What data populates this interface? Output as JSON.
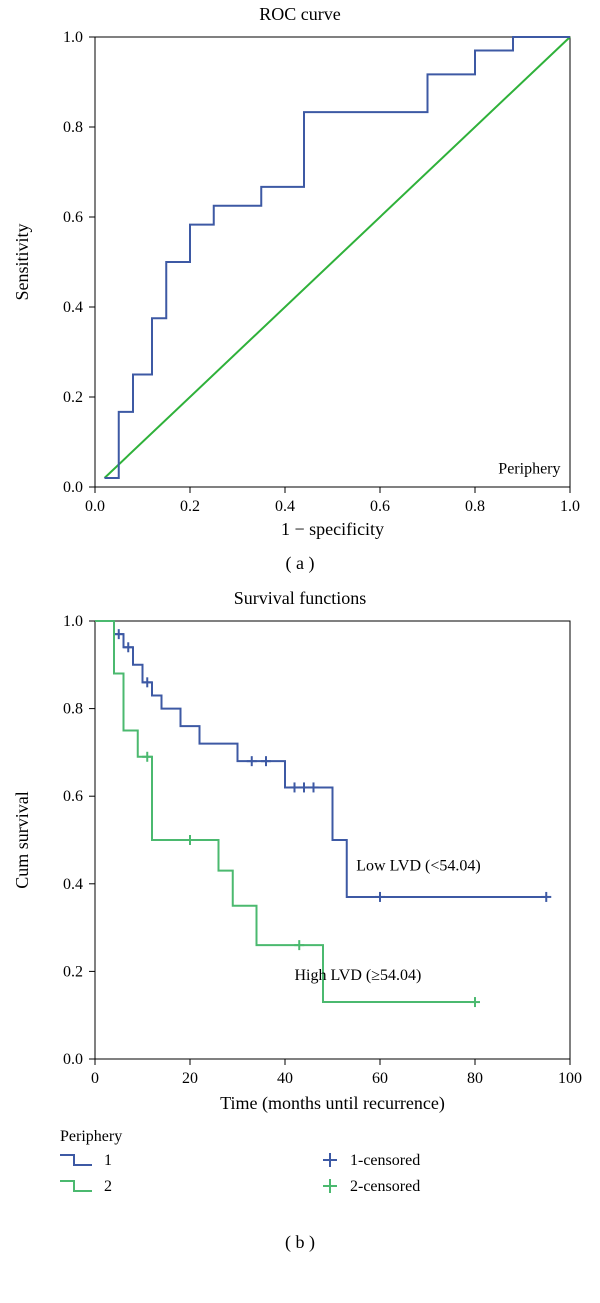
{
  "panelA": {
    "type": "roc",
    "title": "ROC curve",
    "xlabel": "1 − specificity",
    "ylabel": "Sensitivity",
    "xlim": [
      0,
      1
    ],
    "ylim": [
      0,
      1
    ],
    "xticks": [
      0.0,
      0.2,
      0.4,
      0.6,
      0.8,
      1.0
    ],
    "yticks": [
      0.0,
      0.2,
      0.4,
      0.6,
      0.8,
      1.0
    ],
    "corner_label": "Periphery",
    "diagonal": {
      "color": "#2fb13a",
      "points": [
        [
          0.02,
          0.02
        ],
        [
          1.0,
          1.0
        ]
      ]
    },
    "roc": {
      "color": "#3d59a4",
      "points": [
        [
          0.02,
          0.02
        ],
        [
          0.05,
          0.02
        ],
        [
          0.05,
          0.167
        ],
        [
          0.08,
          0.167
        ],
        [
          0.08,
          0.25
        ],
        [
          0.12,
          0.25
        ],
        [
          0.12,
          0.375
        ],
        [
          0.15,
          0.375
        ],
        [
          0.15,
          0.5
        ],
        [
          0.2,
          0.5
        ],
        [
          0.2,
          0.583
        ],
        [
          0.25,
          0.583
        ],
        [
          0.25,
          0.625
        ],
        [
          0.3,
          0.625
        ],
        [
          0.35,
          0.625
        ],
        [
          0.35,
          0.667
        ],
        [
          0.44,
          0.667
        ],
        [
          0.44,
          0.833
        ],
        [
          0.5,
          0.833
        ],
        [
          0.7,
          0.833
        ],
        [
          0.7,
          0.917
        ],
        [
          0.8,
          0.917
        ],
        [
          0.8,
          0.97
        ],
        [
          0.88,
          0.97
        ],
        [
          0.88,
          1.0
        ],
        [
          1.0,
          1.0
        ]
      ]
    },
    "background_color": "#ffffff",
    "axis_color": "#000000",
    "label_fontsize": 18,
    "tick_fontsize": 16
  },
  "panelB": {
    "type": "kaplan-meier",
    "title": "Survival functions",
    "xlabel": "Time (months until recurrence)",
    "ylabel": "Cum survival",
    "xlim": [
      0,
      100
    ],
    "ylim": [
      0,
      1
    ],
    "xticks": [
      0,
      20,
      40,
      60,
      80,
      100
    ],
    "yticks": [
      0.0,
      0.2,
      0.4,
      0.6,
      0.8,
      1.0
    ],
    "series": [
      {
        "id": "1",
        "label": "1",
        "censored_label": "1-censored",
        "color": "#3d59a4",
        "annotation": "Low LVD (<54.04)",
        "annotation_xy": [
          55,
          0.43
        ],
        "points": [
          [
            0,
            1.0
          ],
          [
            4,
            1.0
          ],
          [
            4,
            0.97
          ],
          [
            6,
            0.97
          ],
          [
            6,
            0.94
          ],
          [
            8,
            0.94
          ],
          [
            8,
            0.9
          ],
          [
            10,
            0.9
          ],
          [
            10,
            0.86
          ],
          [
            12,
            0.86
          ],
          [
            12,
            0.83
          ],
          [
            14,
            0.83
          ],
          [
            14,
            0.8
          ],
          [
            18,
            0.8
          ],
          [
            18,
            0.76
          ],
          [
            22,
            0.76
          ],
          [
            22,
            0.72
          ],
          [
            26,
            0.72
          ],
          [
            30,
            0.72
          ],
          [
            30,
            0.68
          ],
          [
            36,
            0.68
          ],
          [
            40,
            0.68
          ],
          [
            40,
            0.62
          ],
          [
            48,
            0.62
          ],
          [
            50,
            0.62
          ],
          [
            50,
            0.5
          ],
          [
            53,
            0.5
          ],
          [
            53,
            0.37
          ],
          [
            60,
            0.37
          ],
          [
            95,
            0.37
          ]
        ],
        "censored": [
          [
            5,
            0.97
          ],
          [
            7,
            0.94
          ],
          [
            11,
            0.86
          ],
          [
            33,
            0.68
          ],
          [
            36,
            0.68
          ],
          [
            42,
            0.62
          ],
          [
            44,
            0.62
          ],
          [
            46,
            0.62
          ],
          [
            60,
            0.37
          ],
          [
            95,
            0.37
          ]
        ]
      },
      {
        "id": "2",
        "label": "2",
        "censored_label": "2-censored",
        "color": "#4bb96f",
        "annotation": "High LVD (≥54.04)",
        "annotation_xy": [
          42,
          0.18
        ],
        "points": [
          [
            0,
            1.0
          ],
          [
            4,
            1.0
          ],
          [
            4,
            0.88
          ],
          [
            6,
            0.88
          ],
          [
            6,
            0.75
          ],
          [
            9,
            0.75
          ],
          [
            9,
            0.69
          ],
          [
            12,
            0.69
          ],
          [
            12,
            0.5
          ],
          [
            26,
            0.5
          ],
          [
            26,
            0.43
          ],
          [
            29,
            0.43
          ],
          [
            29,
            0.35
          ],
          [
            34,
            0.35
          ],
          [
            34,
            0.26
          ],
          [
            48,
            0.26
          ],
          [
            48,
            0.13
          ],
          [
            80,
            0.13
          ]
        ],
        "censored": [
          [
            11,
            0.69
          ],
          [
            20,
            0.5
          ],
          [
            43,
            0.26
          ],
          [
            80,
            0.13
          ]
        ]
      }
    ],
    "legend": {
      "title": "Periphery",
      "left": [
        {
          "kind": "step",
          "color": "#3d59a4",
          "text": "1"
        },
        {
          "kind": "step",
          "color": "#4bb96f",
          "text": "2"
        }
      ],
      "right": [
        {
          "kind": "plus",
          "color": "#3d59a4",
          "text": "1-censored"
        },
        {
          "kind": "plus",
          "color": "#4bb96f",
          "text": "2-censored"
        }
      ]
    },
    "background_color": "#ffffff",
    "axis_color": "#000000",
    "label_fontsize": 18,
    "tick_fontsize": 16
  },
  "subfig_labels": {
    "a": "( a )",
    "b": "( b )"
  }
}
